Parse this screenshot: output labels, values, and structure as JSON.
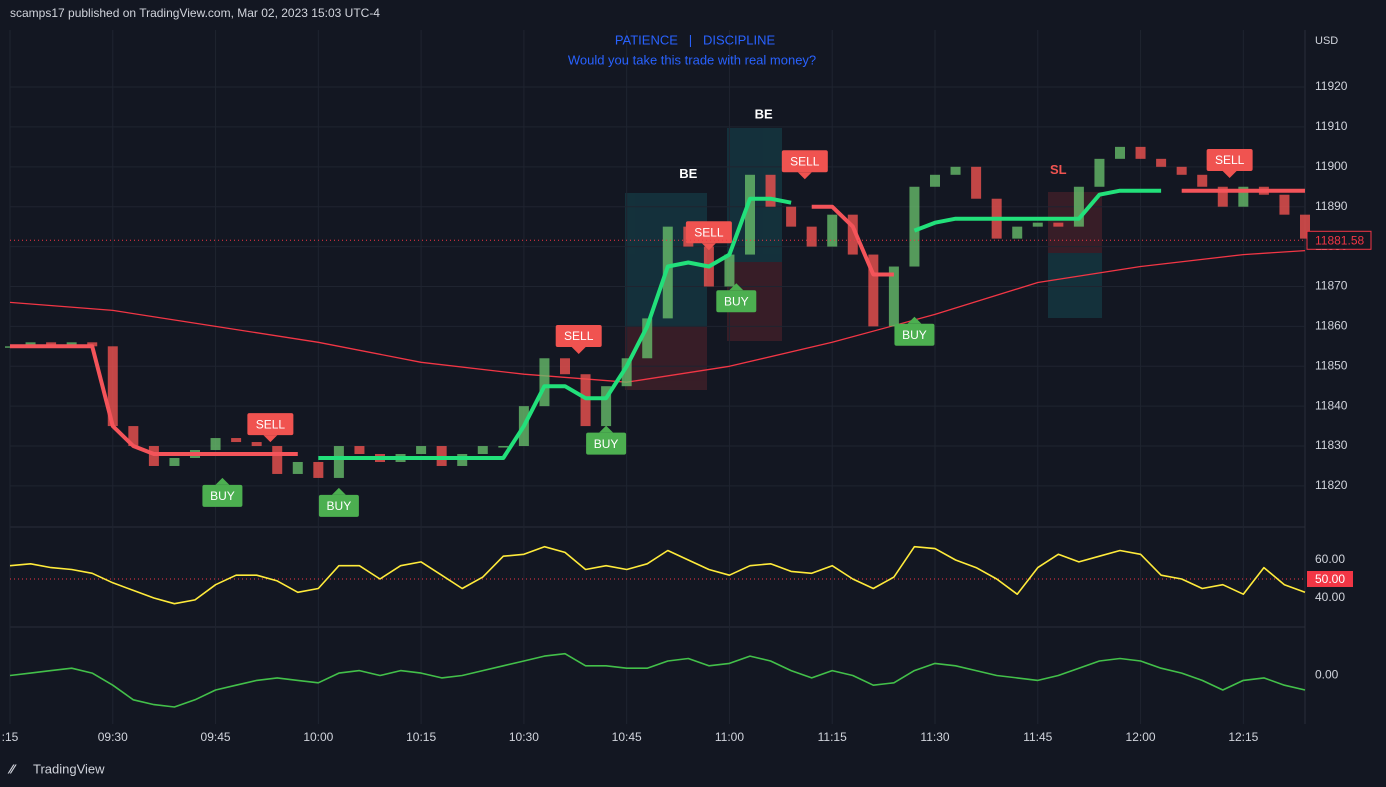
{
  "header": {
    "publisher": "scamps17 published on TradingView.com, Mar 02, 2023 15:03 UTC-4",
    "brand": "TradingView"
  },
  "chart_data": [
    {
      "type": "candlestick",
      "title": "PATIENCE   |   DISCIPLINE",
      "subtitle": "Would you take this trade with real money?",
      "y_label": "USD",
      "x": [
        "09:15",
        "09:18",
        "09:21",
        "09:24",
        "09:27",
        "09:30",
        "09:33",
        "09:36",
        "09:39",
        "09:42",
        "09:45",
        "09:48",
        "09:51",
        "09:54",
        "09:57",
        "10:00",
        "10:03",
        "10:06",
        "10:09",
        "10:12",
        "10:15",
        "10:18",
        "10:21",
        "10:24",
        "10:27",
        "10:30",
        "10:33",
        "10:36",
        "10:39",
        "10:42",
        "10:45",
        "10:48",
        "10:51",
        "10:54",
        "10:57",
        "11:00",
        "11:03",
        "11:06",
        "11:09",
        "11:12",
        "11:15",
        "11:18",
        "11:21",
        "11:24",
        "11:27",
        "11:30",
        "11:33",
        "11:36",
        "11:39",
        "11:42",
        "11:45",
        "11:48",
        "11:51",
        "11:54",
        "11:57",
        "12:00",
        "12:03",
        "12:06",
        "12:09",
        "12:12",
        "12:15",
        "12:18",
        "12:21",
        "12:24"
      ],
      "close": [
        11855,
        11856,
        11855,
        11856,
        11855,
        11835,
        11830,
        11825,
        11827,
        11829,
        11832,
        11831,
        11830,
        11823,
        11826,
        11822,
        11830,
        11828,
        11826,
        11828,
        11830,
        11825,
        11828,
        11830,
        11830,
        11840,
        11852,
        11848,
        11835,
        11845,
        11852,
        11862,
        11885,
        11880,
        11870,
        11878,
        11898,
        11890,
        11885,
        11880,
        11888,
        11878,
        11860,
        11875,
        11895,
        11898,
        11900,
        11892,
        11882,
        11885,
        11886,
        11885,
        11895,
        11902,
        11905,
        11902,
        11900,
        11898,
        11895,
        11890,
        11895,
        11893,
        11888,
        11882
      ],
      "up_color": "#66bb6a",
      "down_color": "#ef5350",
      "trail_up": {
        "color": "#22e07a",
        "values": [
          null,
          null,
          null,
          null,
          null,
          null,
          null,
          null,
          null,
          null,
          null,
          null,
          null,
          null,
          null,
          11827,
          11827,
          11827,
          11827,
          11827,
          11827,
          11827,
          11827,
          11827,
          11827,
          11835,
          11845,
          11845,
          11842,
          11842,
          11850,
          11860,
          11875,
          11876,
          11875,
          11878,
          11892,
          11892,
          11891,
          null,
          null,
          null,
          null,
          null,
          11884,
          11886,
          11887,
          11887,
          11887,
          11887,
          11887,
          11887,
          11887,
          11893,
          11894,
          11894,
          11894,
          null,
          null,
          null,
          null,
          null,
          null,
          null
        ]
      },
      "trail_down": {
        "color": "#f4545a",
        "values": [
          11855,
          11855,
          11855,
          11855,
          11855,
          11835,
          11830,
          11828,
          11828,
          11828,
          11828,
          11828,
          11828,
          11828,
          11828,
          null,
          null,
          null,
          null,
          null,
          null,
          null,
          null,
          null,
          null,
          null,
          null,
          null,
          null,
          null,
          null,
          null,
          null,
          null,
          null,
          null,
          null,
          null,
          null,
          11890,
          11890,
          11885,
          11873,
          11873,
          null,
          null,
          null,
          null,
          null,
          null,
          null,
          null,
          null,
          null,
          null,
          null,
          null,
          11894,
          11894,
          11894,
          11894,
          11894,
          11894,
          11894
        ]
      },
      "ma": {
        "color": "#f23645",
        "x": [
          "09:15",
          "09:30",
          "09:45",
          "10:00",
          "10:15",
          "10:30",
          "10:45",
          "11:00",
          "11:15",
          "11:30",
          "11:45",
          "12:00",
          "12:15",
          "12:24"
        ],
        "values": [
          11866,
          11864,
          11860,
          11856,
          11851,
          11848,
          11846,
          11850,
          11856,
          11863,
          11871,
          11875,
          11878,
          11879
        ]
      },
      "signals": [
        {
          "label": "BUY",
          "x": "09:46",
          "y": 11817.5
        },
        {
          "label": "SELL",
          "x": "09:53",
          "y": 11835.5
        },
        {
          "label": "BUY",
          "x": "10:03",
          "y": 11815
        },
        {
          "label": "SELL",
          "x": "10:38",
          "y": 11857.6
        },
        {
          "label": "BUY",
          "x": "10:42",
          "y": 11830.6
        },
        {
          "label": "SELL",
          "x": "10:57",
          "y": 11883.6
        },
        {
          "label": "BUY",
          "x": "11:01",
          "y": 11866.3
        },
        {
          "label": "SELL",
          "x": "11:11",
          "y": 11901.4
        },
        {
          "label": "BUY",
          "x": "11:27",
          "y": 11857.9
        },
        {
          "label": "SELL",
          "x": "12:13",
          "y": 11901.7
        }
      ],
      "buy_color": "#4caf50",
      "sell_color": "#f05350",
      "annotations": [
        {
          "text": "BE",
          "x": "10:54",
          "y": 11898,
          "color": "#ffffff"
        },
        {
          "text": "BE",
          "x": "11:05",
          "y": 11913,
          "color": "#ffffff"
        },
        {
          "text": "SL",
          "x": "11:48",
          "y": 11899,
          "color": "#f05350"
        }
      ],
      "last_price": 11881.58,
      "xlim": [
        "09:15",
        "12:24"
      ],
      "ylim": [
        11809.7,
        11934.3
      ],
      "yticks": [
        11820,
        11830,
        11840,
        11850,
        11860,
        11870,
        11880,
        11890,
        11900,
        11910,
        11920
      ],
      "grid": true
    },
    {
      "type": "line",
      "x": [
        "09:15",
        "09:18",
        "09:21",
        "09:24",
        "09:27",
        "09:30",
        "09:33",
        "09:36",
        "09:39",
        "09:42",
        "09:45",
        "09:48",
        "09:51",
        "09:54",
        "09:57",
        "10:00",
        "10:03",
        "10:06",
        "10:09",
        "10:12",
        "10:15",
        "10:18",
        "10:21",
        "10:24",
        "10:27",
        "10:30",
        "10:33",
        "10:36",
        "10:39",
        "10:42",
        "10:45",
        "10:48",
        "10:51",
        "10:54",
        "10:57",
        "11:00",
        "11:03",
        "11:06",
        "11:09",
        "11:12",
        "11:15",
        "11:18",
        "11:21",
        "11:24",
        "11:27",
        "11:30",
        "11:33",
        "11:36",
        "11:39",
        "11:42",
        "11:45",
        "11:48",
        "11:51",
        "11:54",
        "11:57",
        "12:00",
        "12:03",
        "12:06",
        "12:09",
        "12:12",
        "12:15",
        "12:18",
        "12:21",
        "12:24"
      ],
      "values": [
        57,
        58,
        56,
        55,
        53,
        48,
        44,
        40,
        37,
        39,
        47,
        52,
        52,
        49,
        43,
        45,
        57,
        57,
        50,
        57,
        59,
        52,
        45,
        51,
        62,
        63,
        67,
        64,
        55,
        57,
        55,
        58,
        65,
        60,
        55,
        52,
        57,
        58,
        54,
        53,
        57,
        50,
        45,
        51,
        67,
        66,
        60,
        56,
        50,
        42,
        56,
        63,
        59,
        62,
        65,
        63,
        52,
        50,
        45,
        47,
        42,
        56,
        47,
        43
      ],
      "color": "#ffeb3b",
      "midline": {
        "value": 50,
        "label": "50.00",
        "color": "#f23645"
      },
      "xlim": [
        "09:15",
        "12:24"
      ],
      "ylim": [
        24.7,
        77.4
      ],
      "yticks": [
        {
          "value": 40,
          "label": "40.00"
        },
        {
          "value": 60,
          "label": "60.00"
        }
      ]
    },
    {
      "type": "line",
      "x": [
        "09:15",
        "09:18",
        "09:21",
        "09:24",
        "09:27",
        "09:30",
        "09:33",
        "09:36",
        "09:39",
        "09:42",
        "09:45",
        "09:48",
        "09:51",
        "09:54",
        "09:57",
        "10:00",
        "10:03",
        "10:06",
        "10:09",
        "10:12",
        "10:15",
        "10:18",
        "10:21",
        "10:24",
        "10:27",
        "10:30",
        "10:33",
        "10:36",
        "10:39",
        "10:42",
        "10:45",
        "10:48",
        "10:51",
        "10:54",
        "10:57",
        "11:00",
        "11:03",
        "11:06",
        "11:09",
        "11:12",
        "11:15",
        "11:18",
        "11:21",
        "11:24",
        "11:27",
        "11:30",
        "11:33",
        "11:36",
        "11:39",
        "11:42",
        "11:45",
        "11:48",
        "11:51",
        "11:54",
        "11:57",
        "12:00",
        "12:03",
        "12:06",
        "12:09",
        "12:12",
        "12:15",
        "12:18",
        "12:21",
        "12:24"
      ],
      "values": [
        0,
        0.5,
        1,
        1.5,
        0.5,
        -2,
        -5,
        -6,
        -6.5,
        -5,
        -3,
        -2,
        -1,
        -0.5,
        -1,
        -1.5,
        0.5,
        1,
        0,
        1,
        0.5,
        -0.5,
        0,
        1,
        2,
        3,
        4,
        4.5,
        2,
        2,
        1.5,
        1.5,
        3,
        3.5,
        2,
        2.5,
        4,
        3,
        1,
        -0.5,
        1,
        0,
        -2,
        -1.5,
        1,
        2.5,
        2,
        1,
        0,
        -0.5,
        -1,
        0,
        1.5,
        3,
        3.5,
        3,
        1.5,
        0.5,
        -1,
        -3,
        -1,
        -0.5,
        -2,
        -3
      ],
      "color": "#43c04a",
      "xlim": [
        "09:15",
        "12:24"
      ],
      "ylim": [
        -10,
        10
      ],
      "yticks": [
        {
          "value": 0,
          "label": "0.00"
        }
      ],
      "xticks": [
        {
          "value": "09:15",
          "label": ":15"
        },
        "09:30",
        "09:45",
        "10:00",
        "10:15",
        "10:30",
        "10:45",
        "11:00",
        "11:15",
        "11:30",
        "11:45",
        "12:00",
        "12:15"
      ]
    }
  ]
}
